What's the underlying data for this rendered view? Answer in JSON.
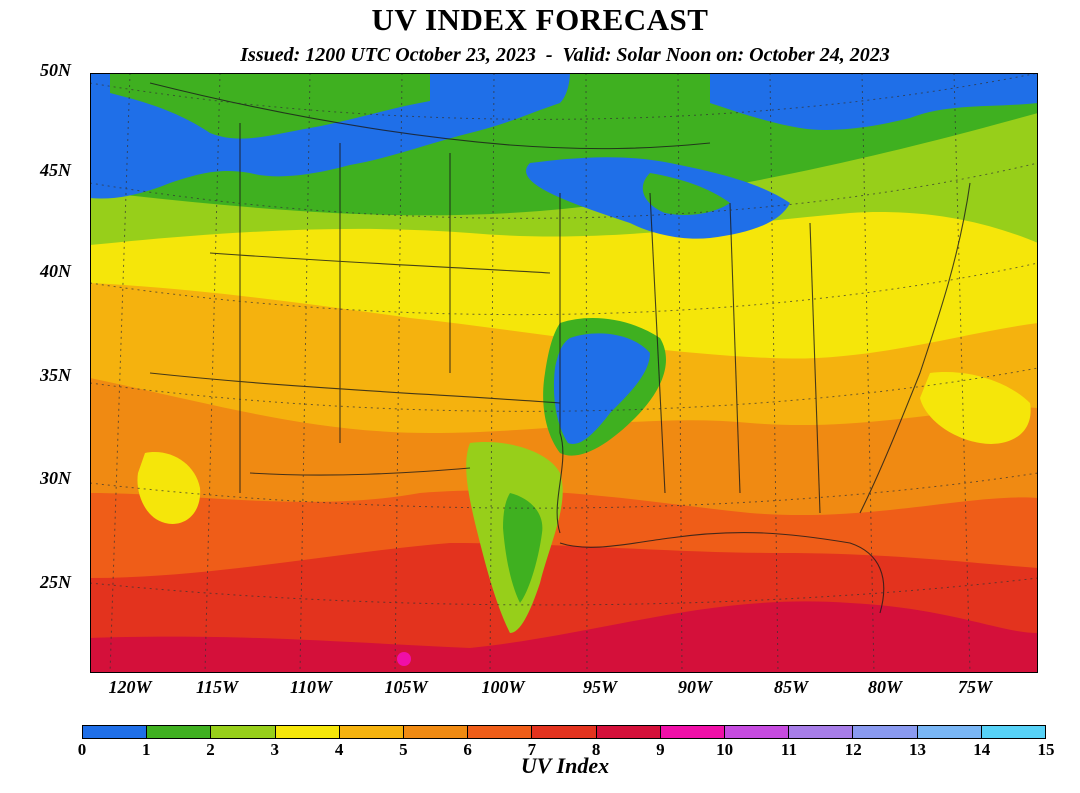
{
  "title": "UV INDEX FORECAST",
  "subtitle": "Issued: 1200 UTC October 23, 2023  -  Valid: Solar Noon on: October 24, 2023",
  "lat_labels": [
    "50N",
    "45N",
    "40N",
    "35N",
    "30N",
    "25N"
  ],
  "lon_labels": [
    "120W",
    "115W",
    "110W",
    "105W",
    "100W",
    "95W",
    "90W",
    "85W",
    "80W",
    "75W"
  ],
  "colorbar": {
    "label": "UV Index",
    "ticks": [
      "0",
      "1",
      "2",
      "3",
      "4",
      "5",
      "6",
      "7",
      "8",
      "9",
      "10",
      "11",
      "12",
      "13",
      "14",
      "15"
    ],
    "colors": [
      "#1f6fe8",
      "#3fb020",
      "#97cf1a",
      "#f5e60a",
      "#f5b20e",
      "#f08a12",
      "#ef5d18",
      "#e3331e",
      "#d4103a",
      "#f00fa8",
      "#c64be0",
      "#a77de8",
      "#8a9af0",
      "#79b6f5",
      "#57d2f7"
    ]
  },
  "map_regions": [
    {
      "name": "northwest-band",
      "uv": 1.5
    },
    {
      "name": "great-lakes-low",
      "uv": 0.8
    },
    {
      "name": "central-plains-low",
      "uv": 0.7
    },
    {
      "name": "gulf-high",
      "uv": 8.0
    },
    {
      "name": "south-mexico-peak",
      "uv": 9.2
    }
  ]
}
